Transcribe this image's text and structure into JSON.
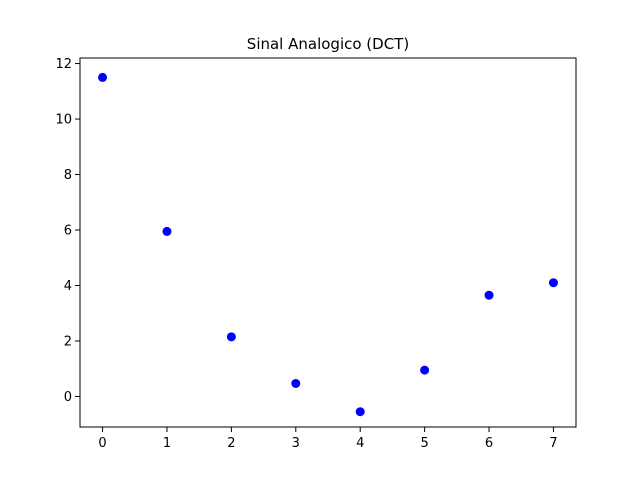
{
  "chart_data": {
    "type": "scatter",
    "title": "Sinal Analogico (DCT)",
    "xlabel": "",
    "ylabel": "",
    "x": [
      0,
      1,
      2,
      3,
      4,
      5,
      6,
      7
    ],
    "y": [
      11.5,
      5.95,
      2.15,
      0.47,
      -0.55,
      0.95,
      3.65,
      4.1
    ],
    "xlim": [
      -0.35,
      7.35
    ],
    "ylim": [
      -1.1,
      12.2
    ],
    "xticks": [
      0,
      1,
      2,
      3,
      4,
      5,
      6,
      7
    ],
    "yticks": [
      0,
      2,
      4,
      6,
      8,
      10,
      12
    ],
    "xtick_labels": [
      "0",
      "1",
      "2",
      "3",
      "4",
      "5",
      "6",
      "7"
    ],
    "ytick_labels": [
      "0",
      "2",
      "4",
      "6",
      "8",
      "10",
      "12"
    ],
    "marker_color": "#0000ff",
    "grid": false,
    "legend": "none"
  }
}
